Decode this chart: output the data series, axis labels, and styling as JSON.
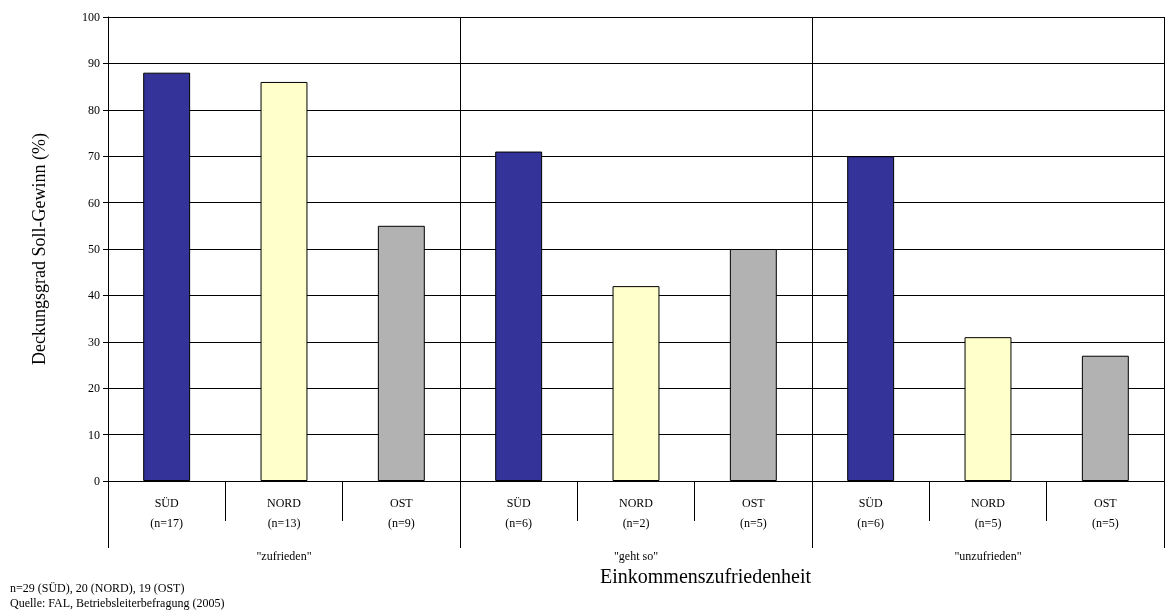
{
  "chart_data": {
    "type": "bar",
    "ylabel": "Deckungsgrad Soll-Gewinn (%)",
    "xlabel": "Einkommenszufriedenheit",
    "categories": [
      "SÜD\n(n=17)",
      "NORD\n(n=13)",
      "OST\n(n=9)",
      "SÜD\n(n=6)",
      "NORD\n(n=2)",
      "OST\n(n=5)",
      "SÜD\n(n=6)",
      "NORD\n(n=5)",
      "OST\n(n=5)"
    ],
    "values": [
      88,
      86,
      55,
      71,
      42,
      50,
      70,
      31,
      27
    ],
    "colors": [
      "#333399",
      "#ffffcc",
      "#b2b2b2",
      "#333399",
      "#ffffcc",
      "#b2b2b2",
      "#333399",
      "#ffffcc",
      "#b2b2b2"
    ],
    "ylim": [
      0,
      100
    ],
    "yticks": [
      0,
      10,
      20,
      30,
      40,
      50,
      60,
      70,
      80,
      90,
      100
    ],
    "grid": "y",
    "annotations": [
      "\"zufrieden\"",
      "\"geht so\"",
      "\"unzufrieden\"",
      "n=29 (SÜD), 20 (NORD), 19 (OST)",
      "Quelle: FAL, Betriebsleiterbefragung (2005)"
    ]
  }
}
